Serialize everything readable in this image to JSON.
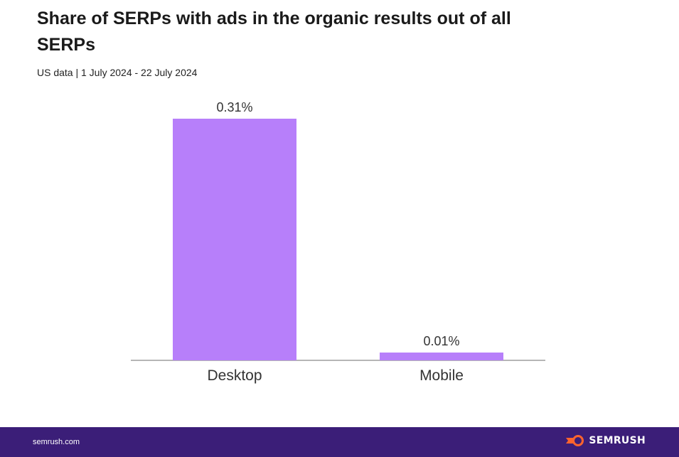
{
  "header": {
    "title": "Share of SERPs with ads in the organic results out of all SERPs",
    "subtitle": "US data | 1 July 2024 - 22 July 2024"
  },
  "chart_data": {
    "type": "bar",
    "title": "Share of SERPs with ads in the organic results out of all SERPs",
    "subtitle": "US data | 1 July 2024 - 22 July 2024",
    "categories": [
      "Desktop",
      "Mobile"
    ],
    "values": [
      0.31,
      0.01
    ],
    "value_labels": [
      "0.31%",
      "0.01%"
    ],
    "unit": "%",
    "xlabel": "",
    "ylabel": "",
    "ylim": [
      0,
      0.31
    ],
    "grid": false,
    "bar_color": "#b77ffa"
  },
  "footer": {
    "domain": "semrush.com",
    "brand": "SEMRUSH",
    "background_color": "#3b1e78",
    "logo_color": "#ff642d"
  }
}
